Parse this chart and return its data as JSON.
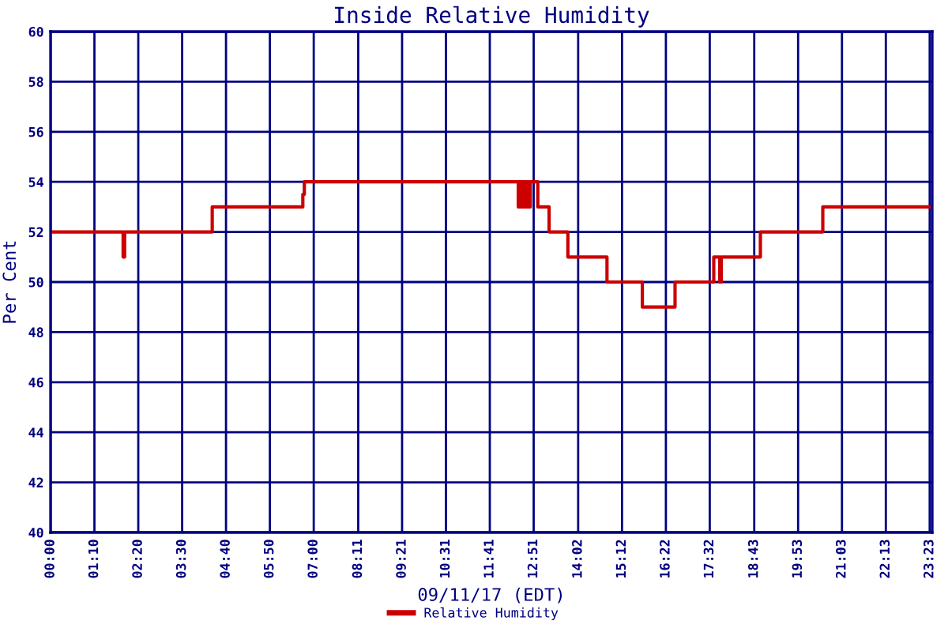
{
  "chart_data": {
    "type": "step",
    "title": "Inside Relative Humidity",
    "xlabel": "09/11/17 (EDT)",
    "ylabel": "Per Cent",
    "series": [
      {
        "name": "Relative Humidity",
        "color": "#cc0000",
        "x": [
          0,
          1.93,
          1.97,
          4.3,
          6.71,
          6.75,
          12.44,
          12.47,
          12.5,
          12.53,
          12.57,
          12.6,
          12.63,
          12.67,
          12.72,
          12.76,
          12.9,
          12.96,
          13.26,
          13.76,
          14.8,
          15.74,
          16.61,
          17.64,
          17.8,
          17.84,
          18.88,
          20.54,
          23.45
        ],
        "values": [
          52,
          51,
          52,
          53,
          53.5,
          54,
          53,
          54,
          53,
          54,
          53,
          54,
          53,
          54,
          53,
          54,
          54,
          53,
          52,
          51,
          50,
          49,
          50,
          51,
          50,
          51,
          52,
          53,
          53
        ]
      }
    ],
    "xlim": [
      0,
      23.45
    ],
    "xticks": [
      {
        "value": 0,
        "label": "00:00"
      },
      {
        "value": 1.1667,
        "label": "01:10"
      },
      {
        "value": 2.3333,
        "label": "02:20"
      },
      {
        "value": 3.5,
        "label": "03:30"
      },
      {
        "value": 4.6667,
        "label": "04:40"
      },
      {
        "value": 5.8333,
        "label": "05:50"
      },
      {
        "value": 7.0,
        "label": "07:00"
      },
      {
        "value": 8.1833,
        "label": "08:11"
      },
      {
        "value": 9.35,
        "label": "09:21"
      },
      {
        "value": 10.5167,
        "label": "10:31"
      },
      {
        "value": 11.6833,
        "label": "11:41"
      },
      {
        "value": 12.85,
        "label": "12:51"
      },
      {
        "value": 14.0333,
        "label": "14:02"
      },
      {
        "value": 15.2,
        "label": "15:12"
      },
      {
        "value": 16.3667,
        "label": "16:22"
      },
      {
        "value": 17.5333,
        "label": "17:32"
      },
      {
        "value": 18.7167,
        "label": "18:43"
      },
      {
        "value": 19.8833,
        "label": "19:53"
      },
      {
        "value": 21.05,
        "label": "21:03"
      },
      {
        "value": 22.2167,
        "label": "22:13"
      },
      {
        "value": 23.3833,
        "label": "23:23"
      }
    ],
    "ylim": [
      40,
      60
    ],
    "yticks": [
      40,
      42,
      44,
      46,
      48,
      50,
      52,
      54,
      56,
      58,
      60
    ],
    "grid": true,
    "legend": "bottom",
    "line_style": "solid"
  }
}
